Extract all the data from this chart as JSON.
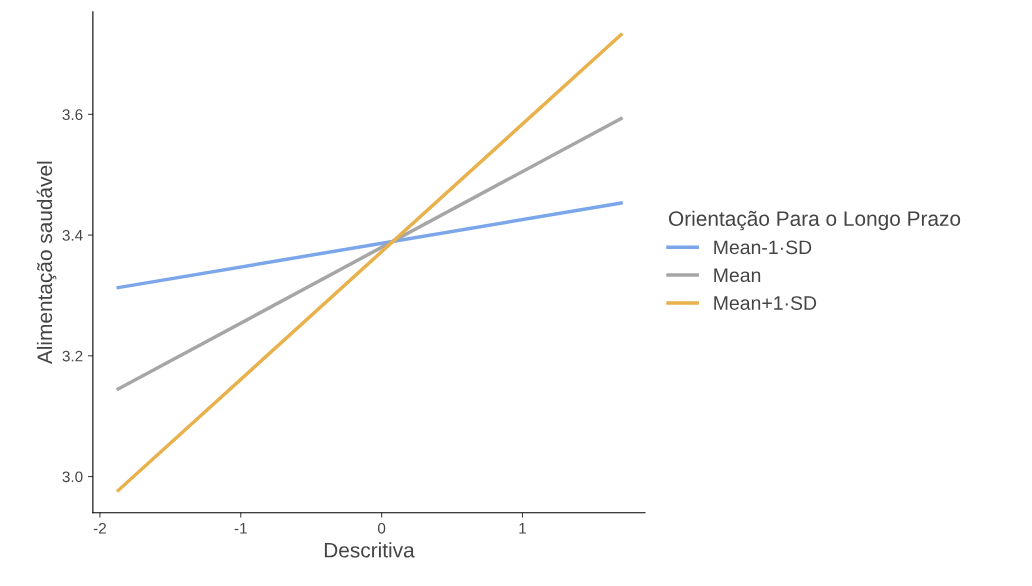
{
  "chart_data": {
    "type": "line",
    "xlabel": "Descritiva",
    "ylabel": "Alimentação saudável",
    "legend_title": "Orientação Para o Longo Prazo",
    "series": [
      {
        "name": "Mean-1·SD",
        "color": "#7ba6ea",
        "values": [
          3.313,
          3.453
        ]
      },
      {
        "name": "Mean",
        "color": "#a6a6a6",
        "values": [
          3.145,
          3.593
        ]
      },
      {
        "name": "Mean+1·SD",
        "color": "#e8b14c",
        "values": [
          2.977,
          3.732
        ]
      }
    ],
    "x": [
      -1.87,
      1.7
    ],
    "xlim": [
      -2.05,
      1.87
    ],
    "ylim": [
      2.94,
      3.77
    ],
    "xticks": [
      {
        "value": -2,
        "label": "-2"
      },
      {
        "value": -1,
        "label": "-1"
      },
      0,
      1
    ],
    "yticks": [
      {
        "value": 3.0,
        "label": "3.0"
      },
      3.2,
      3.4,
      3.6
    ],
    "grid": false,
    "legend": "right",
    "line_style": "solid",
    "marker": "none"
  }
}
